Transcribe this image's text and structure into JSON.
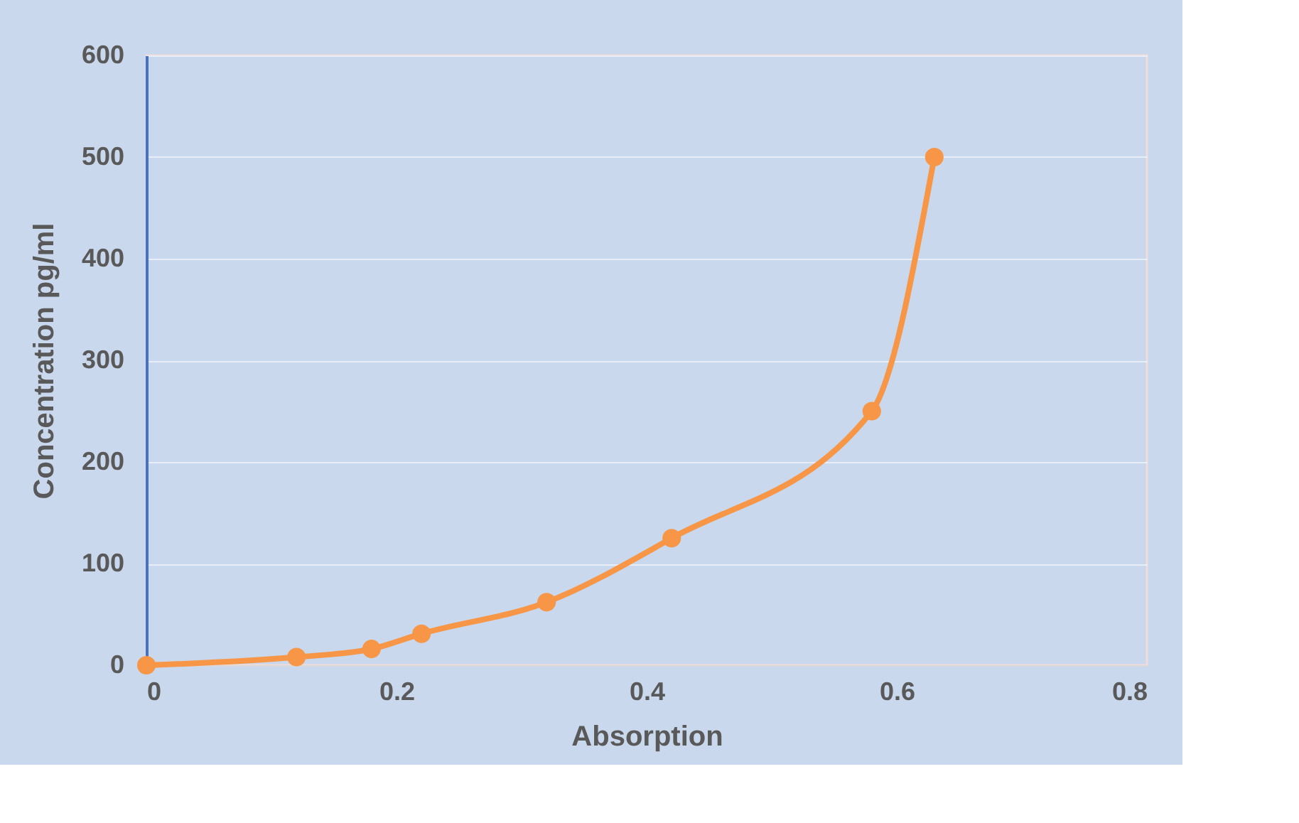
{
  "chart_data": {
    "type": "line",
    "xlabel": "Absorption",
    "ylabel": "Concentration pg/ml",
    "x": [
      0,
      0.12,
      0.18,
      0.22,
      0.32,
      0.42,
      0.58,
      0.63
    ],
    "series": [
      {
        "color": "#f79646",
        "values": [
          0,
          8,
          16,
          31,
          62,
          125,
          250,
          500
        ]
      }
    ],
    "xlim": [
      0,
      0.8
    ],
    "xticks": [
      0,
      0.2,
      0.4,
      0.6,
      0.8
    ],
    "ylim": [
      0,
      600
    ],
    "yticks": [
      0,
      100,
      200,
      300,
      400,
      500,
      600
    ],
    "grid": "y",
    "marker": "circle",
    "line_style": "solid"
  }
}
